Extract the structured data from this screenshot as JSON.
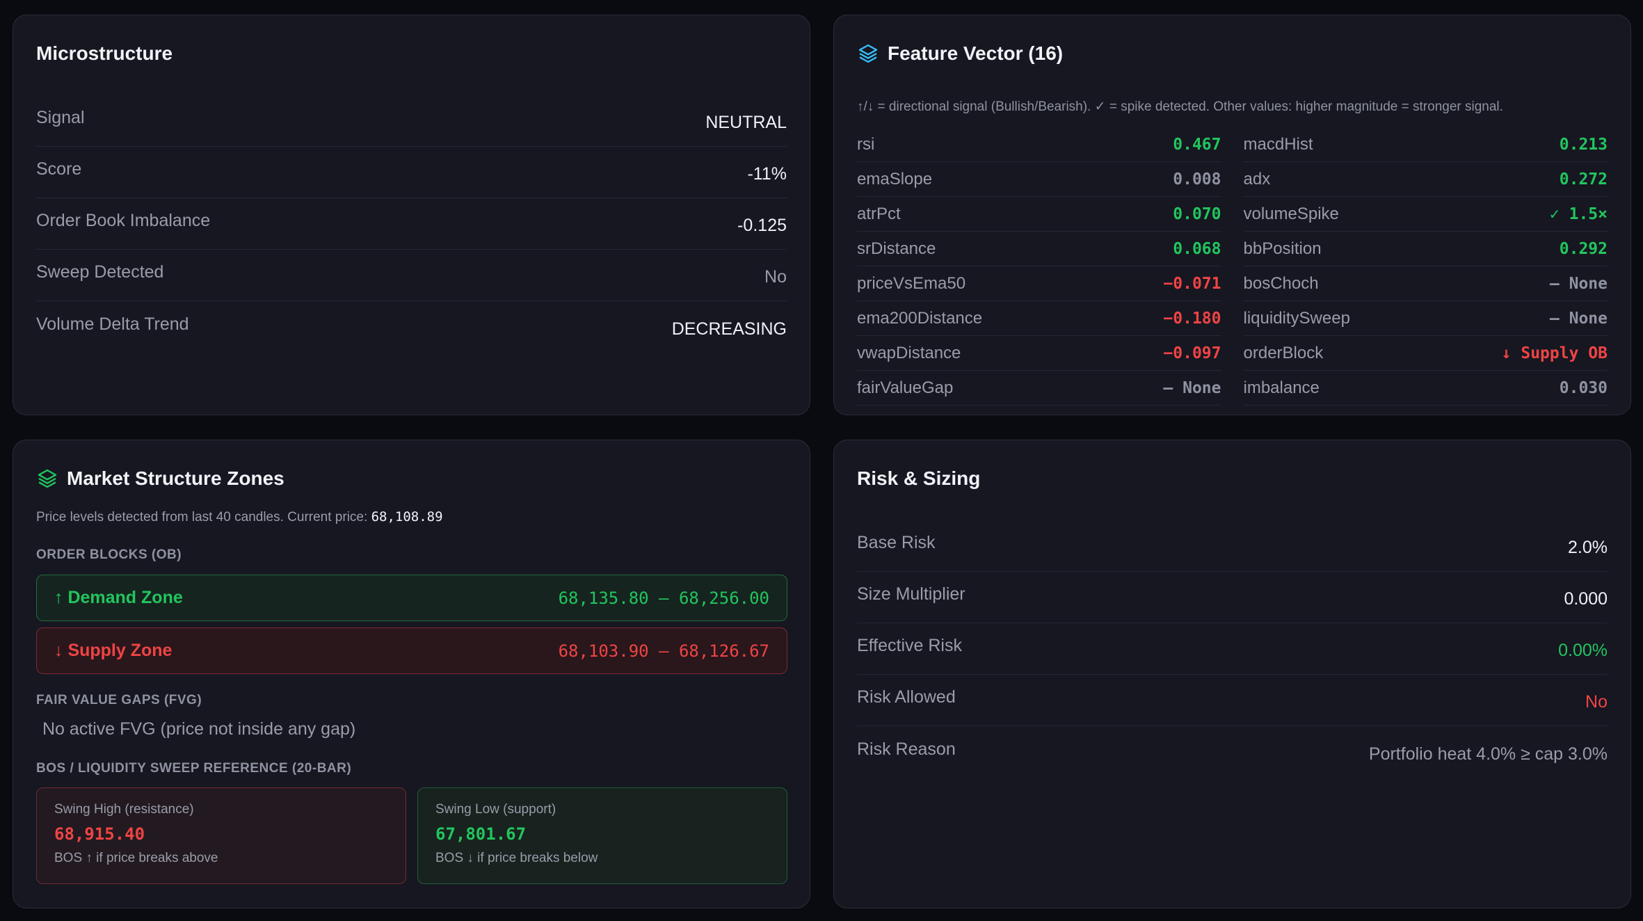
{
  "microstructure": {
    "title": "Microstructure",
    "rows": [
      {
        "label": "Signal",
        "value": "NEUTRAL"
      },
      {
        "label": "Score",
        "value": "-11%"
      },
      {
        "label": "Order Book Imbalance",
        "value": "-0.125"
      },
      {
        "label": "Sweep Detected",
        "value": "No"
      },
      {
        "label": "Volume Delta Trend",
        "value": "DECREASING"
      }
    ]
  },
  "feature_vector": {
    "title": "Feature Vector (16)",
    "note": "↑/↓ = directional signal (Bullish/Bearish). ✓ = spike detected. Other values: higher magnitude = stronger signal.",
    "left": [
      {
        "key": "rsi",
        "value": "0.467",
        "tone": "green"
      },
      {
        "key": "emaSlope",
        "value": "0.008",
        "tone": "gray"
      },
      {
        "key": "atrPct",
        "value": "0.070",
        "tone": "green"
      },
      {
        "key": "srDistance",
        "value": "0.068",
        "tone": "green"
      },
      {
        "key": "priceVsEma50",
        "value": "−0.071",
        "tone": "red"
      },
      {
        "key": "ema200Distance",
        "value": "−0.180",
        "tone": "red"
      },
      {
        "key": "vwapDistance",
        "value": "−0.097",
        "tone": "red"
      },
      {
        "key": "fairValueGap",
        "value": "— None",
        "tone": "gray"
      }
    ],
    "right": [
      {
        "key": "macdHist",
        "value": "0.213",
        "tone": "green"
      },
      {
        "key": "adx",
        "value": "0.272",
        "tone": "green"
      },
      {
        "key": "volumeSpike",
        "value": "✓ 1.5×",
        "tone": "green"
      },
      {
        "key": "bbPosition",
        "value": "0.292",
        "tone": "green"
      },
      {
        "key": "bosChoch",
        "value": "— None",
        "tone": "gray"
      },
      {
        "key": "liquiditySweep",
        "value": "— None",
        "tone": "gray"
      },
      {
        "key": "orderBlock",
        "value": "↓ Supply OB",
        "tone": "red"
      },
      {
        "key": "imbalance",
        "value": "0.030",
        "tone": "gray"
      }
    ]
  },
  "zones": {
    "title": "Market Structure Zones",
    "desc_prefix": "Price levels detected from last 40 candles. Current price:",
    "current_price": "68,108.89",
    "order_blocks_label": "ORDER BLOCKS (OB)",
    "demand_label": "↑ Demand Zone",
    "demand_range": "68,135.80 — 68,256.00",
    "supply_label": "↓ Supply Zone",
    "supply_range": "68,103.90 — 68,126.67",
    "fvg_label": "FAIR VALUE GAPS (FVG)",
    "fvg_empty": "No active FVG (price not inside any gap)",
    "bos_label": "BOS / LIQUIDITY SWEEP REFERENCE (20-BAR)",
    "swing_high_label": "Swing High (resistance)",
    "swing_high_value": "68,915.40",
    "swing_high_note": "BOS ↑ if price breaks above",
    "swing_low_label": "Swing Low (support)",
    "swing_low_value": "67,801.67",
    "swing_low_note": "BOS ↓ if price breaks below"
  },
  "risk": {
    "title": "Risk & Sizing",
    "rows": [
      {
        "label": "Base Risk",
        "value": "2.0%"
      },
      {
        "label": "Size Multiplier",
        "value": "0.000"
      },
      {
        "label": "Effective Risk",
        "value": "0.00%"
      },
      {
        "label": "Risk Allowed",
        "value": "No"
      },
      {
        "label": "Risk Reason",
        "value": "Portfolio heat 4.0% ≥ cap 3.0%"
      }
    ]
  },
  "colors": {
    "green": "#22c55e",
    "red": "#ef4444",
    "accent_icon": "#38bdf8"
  }
}
